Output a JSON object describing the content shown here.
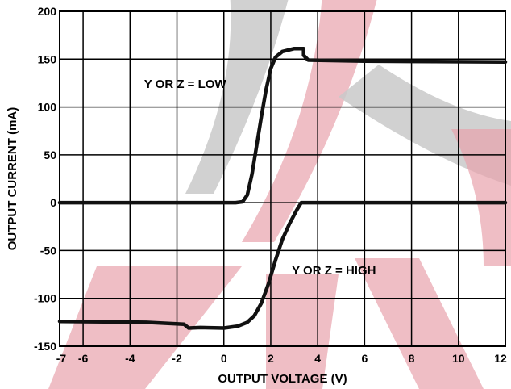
{
  "chart_data": {
    "type": "line",
    "xlabel": "OUTPUT VOLTAGE (V)",
    "ylabel": "OUTPUT CURRENT (mA)",
    "xlim": [
      -7,
      12
    ],
    "ylim": [
      -150,
      200
    ],
    "x_ticks": [
      -7,
      -6,
      -4,
      -2,
      0,
      2,
      4,
      6,
      8,
      10,
      12
    ],
    "y_ticks": [
      -150,
      -100,
      -50,
      0,
      50,
      100,
      150,
      200
    ],
    "grid": true,
    "annotations": [
      {
        "text": "Y OR Z = LOW",
        "x": -3.4,
        "y": 120
      },
      {
        "text": "Y OR Z = HIGH",
        "x": 2.9,
        "y": -75
      }
    ],
    "series": [
      {
        "points": [
          [
            -7,
            0
          ],
          [
            0.5,
            0
          ],
          [
            0.8,
            1
          ],
          [
            1.0,
            8
          ],
          [
            1.2,
            30
          ],
          [
            1.4,
            60
          ],
          [
            1.6,
            90
          ],
          [
            1.8,
            118
          ],
          [
            2.0,
            140
          ],
          [
            2.2,
            152
          ],
          [
            2.5,
            158
          ],
          [
            3.0,
            161
          ],
          [
            3.4,
            161
          ],
          [
            3.4,
            154
          ],
          [
            3.6,
            149
          ],
          [
            6,
            148
          ],
          [
            9,
            147.5
          ],
          [
            12,
            147
          ]
        ]
      },
      {
        "points": [
          [
            -7,
            -124
          ],
          [
            -3.3,
            -125
          ],
          [
            -1.7,
            -127
          ],
          [
            -1.5,
            -131
          ],
          [
            -1.0,
            -130.5
          ],
          [
            0,
            -131
          ],
          [
            0.6,
            -129
          ],
          [
            1.0,
            -125
          ],
          [
            1.3,
            -118
          ],
          [
            1.6,
            -105
          ],
          [
            1.9,
            -85
          ],
          [
            2.2,
            -60
          ],
          [
            2.5,
            -38
          ],
          [
            2.8,
            -22
          ],
          [
            3.1,
            -8
          ],
          [
            3.3,
            0
          ],
          [
            12,
            0
          ]
        ]
      }
    ]
  }
}
